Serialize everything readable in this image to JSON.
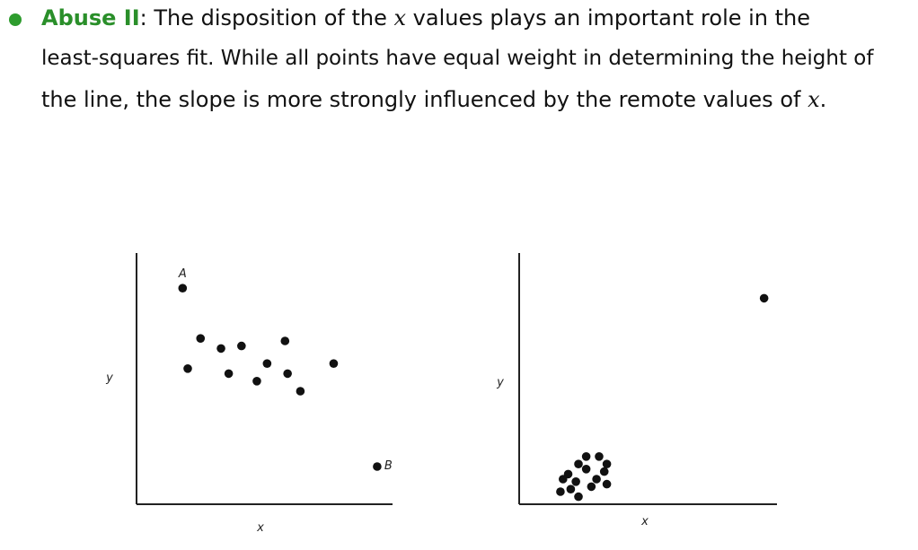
{
  "bullet": {
    "heading": "Abuse II",
    "line1_rest": ": The disposition of the ",
    "line1_var": "x",
    "line1_tail": " values plays an important role in the",
    "line2": "least-squares fit.  While all points have equal weight in determining the height of",
    "line3_head": "the line, the slope is more strongly influenced by the remote values of ",
    "line3_var": "x",
    "line3_end": ".",
    "colors": {
      "heading": "#2a8f2a",
      "bullet": "#2e9c2e"
    }
  },
  "chart_data": [
    {
      "type": "scatter",
      "xlabel": "x",
      "ylabel": "y",
      "xlim": [
        0,
        10
      ],
      "ylim": [
        0,
        10
      ],
      "points": [
        {
          "x": 1.8,
          "y": 8.6,
          "label": "A"
        },
        {
          "x": 2.5,
          "y": 6.6
        },
        {
          "x": 2.0,
          "y": 5.4
        },
        {
          "x": 3.3,
          "y": 6.2
        },
        {
          "x": 4.1,
          "y": 6.3
        },
        {
          "x": 3.6,
          "y": 5.2
        },
        {
          "x": 5.1,
          "y": 5.6
        },
        {
          "x": 4.7,
          "y": 4.9
        },
        {
          "x": 5.8,
          "y": 6.5
        },
        {
          "x": 5.9,
          "y": 5.2
        },
        {
          "x": 6.4,
          "y": 4.5
        },
        {
          "x": 7.7,
          "y": 5.6
        },
        {
          "x": 9.4,
          "y": 1.5,
          "label": "B"
        }
      ]
    },
    {
      "type": "scatter",
      "xlabel": "x",
      "ylabel": "y",
      "xlim": [
        0,
        10
      ],
      "ylim": [
        0,
        10
      ],
      "points": [
        {
          "x": 2.3,
          "y": 1.6
        },
        {
          "x": 2.6,
          "y": 1.9
        },
        {
          "x": 3.1,
          "y": 1.9
        },
        {
          "x": 1.7,
          "y": 1.0
        },
        {
          "x": 1.9,
          "y": 1.2
        },
        {
          "x": 1.6,
          "y": 0.5
        },
        {
          "x": 2.6,
          "y": 1.4
        },
        {
          "x": 3.0,
          "y": 1.0
        },
        {
          "x": 3.3,
          "y": 1.3
        },
        {
          "x": 3.4,
          "y": 0.8
        },
        {
          "x": 2.0,
          "y": 0.6
        },
        {
          "x": 2.2,
          "y": 0.9
        },
        {
          "x": 2.3,
          "y": 0.3
        },
        {
          "x": 2.8,
          "y": 0.7
        },
        {
          "x": 3.4,
          "y": 1.6
        },
        {
          "x": 9.5,
          "y": 8.2
        }
      ]
    }
  ]
}
